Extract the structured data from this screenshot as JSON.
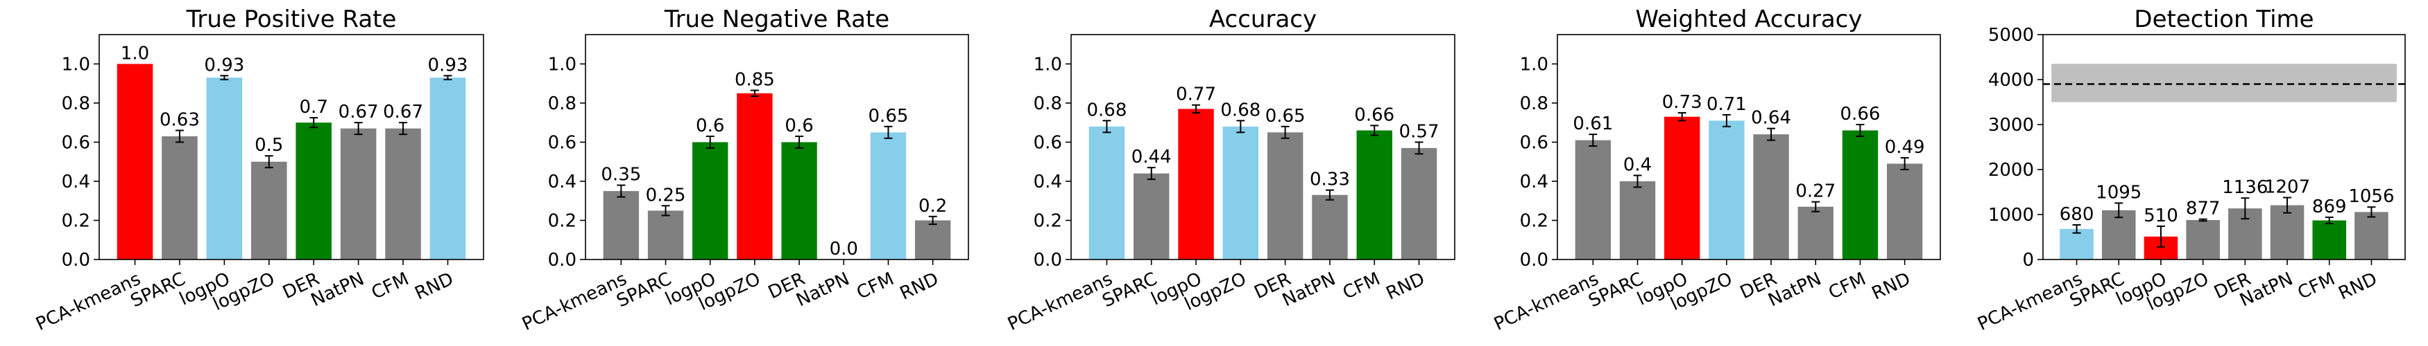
{
  "colors": {
    "red": "#ff0000",
    "gray": "#808080",
    "skyblue": "#87ceeb",
    "green": "#008000",
    "band": "#bfbfbf",
    "errorbar": "#000000"
  },
  "chart_data": [
    {
      "type": "bar",
      "title": "True Positive Rate",
      "categories": [
        "PCA-kmeans",
        "SPARC",
        "logpO",
        "logpZO",
        "DER",
        "NatPN",
        "CFM",
        "RND"
      ],
      "values": [
        1.0,
        0.63,
        0.93,
        0.5,
        0.7,
        0.67,
        0.67,
        0.93
      ],
      "value_labels": [
        "1.0",
        "0.63",
        "0.93",
        "0.5",
        "0.7",
        "0.67",
        "0.67",
        "0.93"
      ],
      "errors": [
        0.0,
        0.03,
        0.01,
        0.03,
        0.025,
        0.03,
        0.03,
        0.01
      ],
      "colors": [
        "red",
        "gray",
        "skyblue",
        "gray",
        "green",
        "gray",
        "gray",
        "skyblue"
      ],
      "ylim": [
        0,
        1.15
      ],
      "yticks": [
        0.0,
        0.2,
        0.4,
        0.6,
        0.8,
        1.0
      ],
      "ytick_labels": [
        "0.0",
        "0.2",
        "0.4",
        "0.6",
        "0.8",
        "1.0"
      ],
      "grid": false
    },
    {
      "type": "bar",
      "title": "True Negative Rate",
      "categories": [
        "PCA-kmeans",
        "SPARC",
        "logpO",
        "logpZO",
        "DER",
        "NatPN",
        "CFM",
        "RND"
      ],
      "values": [
        0.35,
        0.25,
        0.6,
        0.85,
        0.6,
        0.0,
        0.65,
        0.2
      ],
      "value_labels": [
        "0.35",
        "0.25",
        "0.6",
        "0.85",
        "0.6",
        "0.0",
        "0.65",
        "0.2"
      ],
      "errors": [
        0.03,
        0.025,
        0.03,
        0.015,
        0.03,
        0.0,
        0.03,
        0.02
      ],
      "colors": [
        "gray",
        "gray",
        "green",
        "red",
        "green",
        "gray",
        "skyblue",
        "gray"
      ],
      "ylim": [
        0,
        1.15
      ],
      "yticks": [
        0.0,
        0.2,
        0.4,
        0.6,
        0.8,
        1.0
      ],
      "ytick_labels": [
        "0.0",
        "0.2",
        "0.4",
        "0.6",
        "0.8",
        "1.0"
      ],
      "grid": false
    },
    {
      "type": "bar",
      "title": "Accuracy",
      "categories": [
        "PCA-kmeans",
        "SPARC",
        "logpO",
        "logpZO",
        "DER",
        "NatPN",
        "CFM",
        "RND"
      ],
      "values": [
        0.68,
        0.44,
        0.77,
        0.68,
        0.65,
        0.33,
        0.66,
        0.57
      ],
      "value_labels": [
        "0.68",
        "0.44",
        "0.77",
        "0.68",
        "0.65",
        "0.33",
        "0.66",
        "0.57"
      ],
      "errors": [
        0.03,
        0.03,
        0.02,
        0.03,
        0.03,
        0.025,
        0.025,
        0.03
      ],
      "colors": [
        "skyblue",
        "gray",
        "red",
        "skyblue",
        "gray",
        "gray",
        "green",
        "gray"
      ],
      "ylim": [
        0,
        1.15
      ],
      "yticks": [
        0.0,
        0.2,
        0.4,
        0.6,
        0.8,
        1.0
      ],
      "ytick_labels": [
        "0.0",
        "0.2",
        "0.4",
        "0.6",
        "0.8",
        "1.0"
      ],
      "grid": false
    },
    {
      "type": "bar",
      "title": "Weighted Accuracy",
      "categories": [
        "PCA-kmeans",
        "SPARC",
        "logpO",
        "logpZO",
        "DER",
        "NatPN",
        "CFM",
        "RND"
      ],
      "values": [
        0.61,
        0.4,
        0.73,
        0.71,
        0.64,
        0.27,
        0.66,
        0.49
      ],
      "value_labels": [
        "0.61",
        "0.4",
        "0.73",
        "0.71",
        "0.64",
        "0.27",
        "0.66",
        "0.49"
      ],
      "errors": [
        0.03,
        0.03,
        0.02,
        0.03,
        0.03,
        0.025,
        0.03,
        0.03
      ],
      "colors": [
        "gray",
        "gray",
        "red",
        "skyblue",
        "gray",
        "gray",
        "green",
        "gray"
      ],
      "ylim": [
        0,
        1.15
      ],
      "yticks": [
        0.0,
        0.2,
        0.4,
        0.6,
        0.8,
        1.0
      ],
      "ytick_labels": [
        "0.0",
        "0.2",
        "0.4",
        "0.6",
        "0.8",
        "1.0"
      ],
      "grid": false
    },
    {
      "type": "bar",
      "title": "Detection Time",
      "categories": [
        "PCA-kmeans",
        "SPARC",
        "logpO",
        "logpZO",
        "DER",
        "NatPN",
        "CFM",
        "RND"
      ],
      "values": [
        680,
        1095,
        510,
        877,
        1136,
        1207,
        869,
        1056
      ],
      "value_labels": [
        "680",
        "1095",
        "510",
        "877",
        "1136",
        "1207",
        "869",
        "1056"
      ],
      "errors": [
        90,
        160,
        230,
        20,
        230,
        170,
        70,
        110
      ],
      "colors": [
        "skyblue",
        "gray",
        "red",
        "gray",
        "gray",
        "gray",
        "green",
        "gray"
      ],
      "ylim": [
        0,
        5000
      ],
      "yticks": [
        0,
        1000,
        2000,
        3000,
        4000,
        5000
      ],
      "ytick_labels": [
        "0",
        "1000",
        "2000",
        "3000",
        "4000",
        "5000"
      ],
      "reference_line": 3900,
      "reference_band": [
        3500,
        4350
      ],
      "grid": false
    }
  ]
}
